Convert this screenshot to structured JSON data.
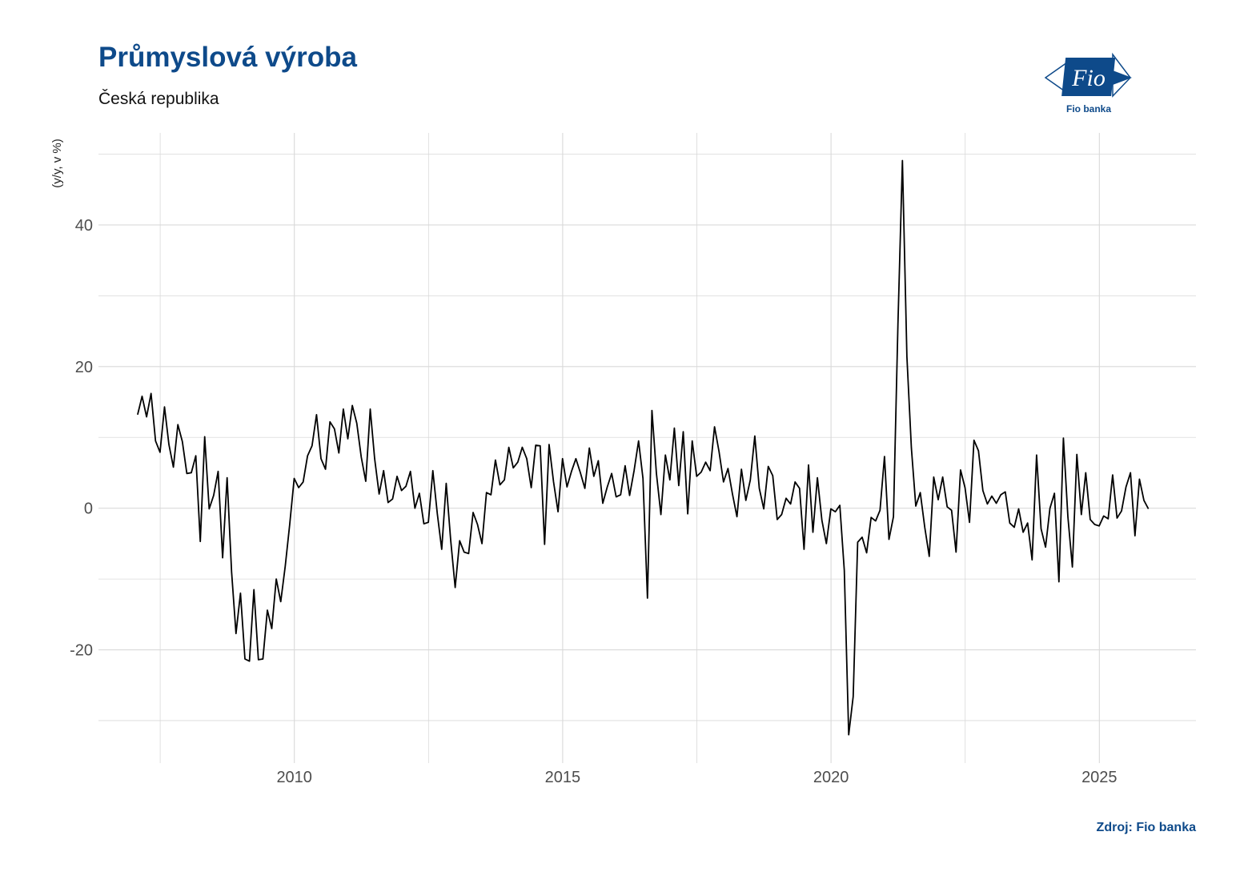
{
  "header": {
    "title": "Průmyslová výroba",
    "subtitle": "Česká republika"
  },
  "logo": {
    "text": "Fio banka",
    "mark": "Fio"
  },
  "footer": {
    "source": "Zdroj: Fio banka"
  },
  "colors": {
    "brand": "#0e4a8a",
    "line": "#000000",
    "grid": "#d9d9d9"
  },
  "chart_data": {
    "type": "line",
    "title": "Průmyslová výroba",
    "subtitle": "Česká republika",
    "xlabel": "",
    "ylabel": "(y/y, v %)",
    "xlim": [
      2006.35,
      2026.8
    ],
    "ylim": [
      -36,
      53
    ],
    "x_ticks": [
      2010,
      2015,
      2020,
      2025
    ],
    "x_tick_labels": [
      "2010",
      "2015",
      "2020",
      "2025"
    ],
    "y_ticks": [
      -20,
      0,
      20,
      40
    ],
    "y_tick_labels": [
      "-20",
      "0",
      "20",
      "40"
    ],
    "grid": true,
    "legend": "none",
    "series": [
      {
        "start": 2007.08,
        "step_months": 1,
        "values": [
          13.2,
          15.8,
          12.9,
          16.2,
          9.5,
          7.9,
          14.3,
          9.0,
          5.8,
          11.8,
          9.4,
          4.9,
          5.0,
          7.4,
          -4.7,
          10.1,
          -0.1,
          1.8,
          5.2,
          -7.0,
          4.3,
          -9.0,
          -17.7,
          -12.0,
          -21.3,
          -21.6,
          -11.5,
          -21.4,
          -21.3,
          -14.4,
          -17.0,
          -10.0,
          -13.2,
          -8.2,
          -2.3,
          4.2,
          2.9,
          3.7,
          7.4,
          8.8,
          13.2,
          7.0,
          5.5,
          12.2,
          11.2,
          7.8,
          14.0,
          9.8,
          14.5,
          12.0,
          7.2,
          3.8,
          14.0,
          7.0,
          2.0,
          5.3,
          0.8,
          1.3,
          4.5,
          2.5,
          3.1,
          5.2,
          0.0,
          2.1,
          -2.2,
          -2.0,
          5.3,
          -0.8,
          -5.8,
          3.5,
          -4.5,
          -11.2,
          -4.6,
          -6.2,
          -6.4,
          -0.6,
          -2.3,
          -5.0,
          2.2,
          1.9,
          6.8,
          3.3,
          4.0,
          8.6,
          5.7,
          6.5,
          8.6,
          7.0,
          2.9,
          8.9,
          8.8,
          -5.1,
          9.0,
          3.7,
          -0.5,
          7.0,
          3.0,
          5.2,
          7.0,
          5.0,
          2.8,
          8.5,
          4.5,
          6.7,
          0.7,
          3.0,
          4.9,
          1.6,
          1.9,
          6.0,
          1.8,
          5.3,
          9.5,
          4.2,
          -12.7,
          13.8,
          4.9,
          -0.9,
          7.5,
          4.0,
          11.3,
          3.2,
          10.8,
          -0.8,
          9.5,
          4.5,
          5.1,
          6.5,
          5.3,
          11.5,
          8.0,
          3.7,
          5.6,
          2.0,
          -1.2,
          5.5,
          1.1,
          4.0,
          10.2,
          2.8,
          -0.1,
          5.9,
          4.6,
          -1.6,
          -0.9,
          1.4,
          0.6,
          3.7,
          2.8,
          -5.8,
          6.1,
          -3.4,
          4.3,
          -1.7,
          -5.0,
          -0.1,
          -0.5,
          0.4,
          -8.8,
          -32.0,
          -26.6,
          -4.8,
          -4.1,
          -6.3,
          -1.3,
          -1.8,
          -0.3,
          7.3,
          -4.4,
          -1.2,
          26.0,
          49.1,
          21.4,
          8.5,
          0.3,
          2.2,
          -2.7,
          -6.8,
          4.4,
          1.2,
          4.4,
          0.2,
          -0.3,
          -6.2,
          5.4,
          2.9,
          -2.0,
          9.6,
          8.1,
          2.5,
          0.6,
          1.7,
          0.7,
          1.9,
          2.3,
          -2.1,
          -2.7,
          -0.1,
          -3.4,
          -2.1,
          -7.3,
          7.5,
          -2.9,
          -5.5,
          0.0,
          2.1,
          -10.4,
          9.9,
          -1.2,
          -8.3,
          7.6,
          -0.9,
          5.0,
          -1.6,
          -2.3,
          -2.5,
          -1.1,
          -1.5,
          4.7,
          -1.4,
          -0.4,
          3.0,
          5.0,
          -3.9,
          4.1,
          1.1,
          -0.1
        ]
      }
    ]
  }
}
